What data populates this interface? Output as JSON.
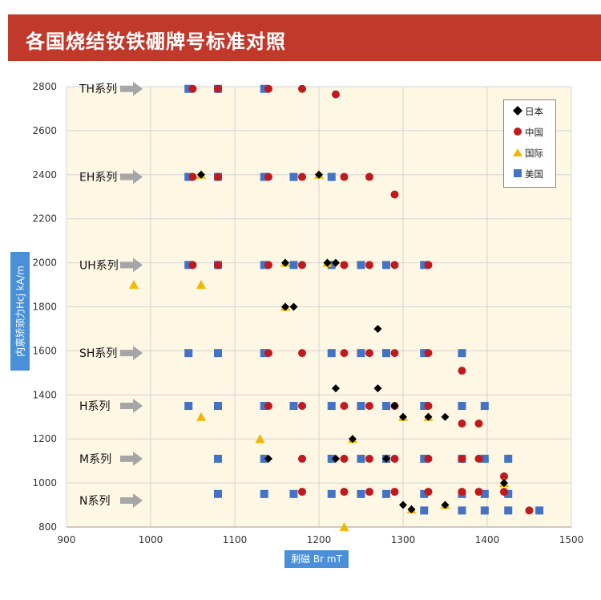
{
  "banner": {
    "title": "各国烧结钕铁硼牌号标准对照"
  },
  "chart_data": {
    "type": "scatter",
    "title": "",
    "xlabel": "剩磁 Br mT",
    "ylabel": "内禀矫顽力Hcj kA/m",
    "xlim": [
      900,
      1500
    ],
    "ylim": [
      800,
      2800
    ],
    "x_ticks": [
      900,
      1000,
      1100,
      1200,
      1300,
      1400,
      1500
    ],
    "y_ticks": [
      800,
      1000,
      1200,
      1400,
      1600,
      1800,
      2000,
      2200,
      2400,
      2600,
      2800
    ],
    "grid": "both",
    "background": "#fdf7e3",
    "legend_position": "top-right",
    "series": [
      {
        "name": "日本",
        "marker": "diamond",
        "color": "#000000",
        "points": [
          [
            1060,
            2400
          ],
          [
            1200,
            2400
          ],
          [
            1160,
            2000
          ],
          [
            1210,
            2000
          ],
          [
            1220,
            2000
          ],
          [
            1160,
            1800
          ],
          [
            1170,
            1800
          ],
          [
            1270,
            1700
          ],
          [
            1220,
            1430
          ],
          [
            1270,
            1430
          ],
          [
            1290,
            1350
          ],
          [
            1300,
            1300
          ],
          [
            1330,
            1300
          ],
          [
            1350,
            1300
          ],
          [
            1240,
            1200
          ],
          [
            1140,
            1110
          ],
          [
            1220,
            1110
          ],
          [
            1280,
            1110
          ],
          [
            1420,
            1000
          ],
          [
            1300,
            900
          ],
          [
            1310,
            880
          ],
          [
            1350,
            900
          ]
        ]
      },
      {
        "name": "中国",
        "marker": "circle",
        "color": "#c0191e",
        "points": [
          [
            1050,
            2790
          ],
          [
            1080,
            2790
          ],
          [
            1140,
            2790
          ],
          [
            1180,
            2790
          ],
          [
            1220,
            2765
          ],
          [
            1050,
            2390
          ],
          [
            1080,
            2390
          ],
          [
            1140,
            2390
          ],
          [
            1180,
            2390
          ],
          [
            1230,
            2390
          ],
          [
            1260,
            2390
          ],
          [
            1290,
            2310
          ],
          [
            1050,
            1990
          ],
          [
            1080,
            1990
          ],
          [
            1140,
            1990
          ],
          [
            1180,
            1990
          ],
          [
            1230,
            1990
          ],
          [
            1260,
            1990
          ],
          [
            1290,
            1990
          ],
          [
            1330,
            1990
          ],
          [
            1140,
            1590
          ],
          [
            1180,
            1590
          ],
          [
            1230,
            1590
          ],
          [
            1260,
            1590
          ],
          [
            1290,
            1590
          ],
          [
            1330,
            1590
          ],
          [
            1370,
            1510
          ],
          [
            1140,
            1350
          ],
          [
            1180,
            1350
          ],
          [
            1230,
            1350
          ],
          [
            1260,
            1350
          ],
          [
            1290,
            1350
          ],
          [
            1330,
            1350
          ],
          [
            1370,
            1270
          ],
          [
            1390,
            1270
          ],
          [
            1180,
            1110
          ],
          [
            1230,
            1110
          ],
          [
            1260,
            1110
          ],
          [
            1290,
            1110
          ],
          [
            1330,
            1110
          ],
          [
            1370,
            1110
          ],
          [
            1390,
            1110
          ],
          [
            1420,
            1030
          ],
          [
            1180,
            960
          ],
          [
            1230,
            960
          ],
          [
            1260,
            960
          ],
          [
            1290,
            960
          ],
          [
            1330,
            960
          ],
          [
            1370,
            960
          ],
          [
            1390,
            960
          ],
          [
            1420,
            960
          ],
          [
            1450,
            875
          ]
        ]
      },
      {
        "name": "国际",
        "marker": "triangle",
        "color": "#f2b705",
        "points": [
          [
            1060,
            2400
          ],
          [
            1200,
            2400
          ],
          [
            980,
            1900
          ],
          [
            1060,
            1900
          ],
          [
            1160,
            2000
          ],
          [
            1210,
            2000
          ],
          [
            1160,
            1800
          ],
          [
            1060,
            1300
          ],
          [
            1300,
            1300
          ],
          [
            1330,
            1300
          ],
          [
            1130,
            1200
          ],
          [
            1240,
            1200
          ],
          [
            1420,
            1000
          ],
          [
            1310,
            880
          ],
          [
            1350,
            900
          ],
          [
            1230,
            800
          ]
        ]
      },
      {
        "name": "美国",
        "marker": "square",
        "color": "#4472c4",
        "points": [
          [
            1045,
            2790
          ],
          [
            1080,
            2790
          ],
          [
            1135,
            2790
          ],
          [
            1045,
            2390
          ],
          [
            1080,
            2390
          ],
          [
            1135,
            2390
          ],
          [
            1170,
            2390
          ],
          [
            1215,
            2390
          ],
          [
            1045,
            1990
          ],
          [
            1080,
            1990
          ],
          [
            1135,
            1990
          ],
          [
            1170,
            1990
          ],
          [
            1215,
            1990
          ],
          [
            1250,
            1990
          ],
          [
            1280,
            1990
          ],
          [
            1325,
            1990
          ],
          [
            1045,
            1590
          ],
          [
            1080,
            1590
          ],
          [
            1135,
            1590
          ],
          [
            1215,
            1590
          ],
          [
            1250,
            1590
          ],
          [
            1280,
            1590
          ],
          [
            1325,
            1590
          ],
          [
            1370,
            1590
          ],
          [
            1045,
            1350
          ],
          [
            1080,
            1350
          ],
          [
            1135,
            1350
          ],
          [
            1170,
            1350
          ],
          [
            1215,
            1350
          ],
          [
            1250,
            1350
          ],
          [
            1280,
            1350
          ],
          [
            1325,
            1350
          ],
          [
            1370,
            1350
          ],
          [
            1397,
            1350
          ],
          [
            1080,
            1110
          ],
          [
            1135,
            1110
          ],
          [
            1215,
            1110
          ],
          [
            1250,
            1110
          ],
          [
            1280,
            1110
          ],
          [
            1325,
            1110
          ],
          [
            1370,
            1110
          ],
          [
            1397,
            1110
          ],
          [
            1425,
            1110
          ],
          [
            1080,
            950
          ],
          [
            1135,
            950
          ],
          [
            1170,
            950
          ],
          [
            1215,
            950
          ],
          [
            1250,
            950
          ],
          [
            1280,
            950
          ],
          [
            1325,
            950
          ],
          [
            1370,
            950
          ],
          [
            1397,
            950
          ],
          [
            1425,
            950
          ],
          [
            1325,
            875
          ],
          [
            1370,
            875
          ],
          [
            1397,
            875
          ],
          [
            1425,
            875
          ],
          [
            1462,
            875
          ]
        ]
      }
    ],
    "annotations": [
      {
        "text": "TH系列",
        "y": 2790
      },
      {
        "text": "EH系列",
        "y": 2390
      },
      {
        "text": "UH系列",
        "y": 1990
      },
      {
        "text": "SH系列",
        "y": 1590
      },
      {
        "text": "H系列",
        "y": 1350
      },
      {
        "text": "M系列",
        "y": 1110
      },
      {
        "text": "N系列",
        "y": 920
      }
    ]
  }
}
